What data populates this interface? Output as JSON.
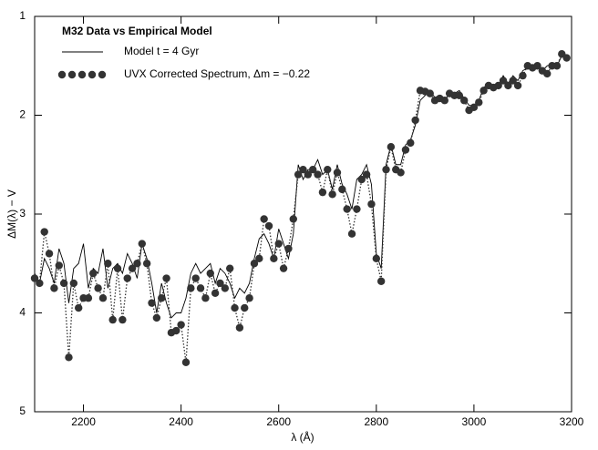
{
  "chart_data": {
    "type": "line",
    "title": "M32 Data vs Empirical Model",
    "x_label": "λ (Å)",
    "y_label": "ΔM(λ) − V",
    "xlim": [
      2100,
      3200
    ],
    "xticks": [
      2200,
      2400,
      2600,
      2800,
      3000,
      3200
    ],
    "ylim": [
      1,
      5
    ],
    "yticks": [
      1,
      2,
      3,
      4,
      5
    ],
    "y_inverted": true,
    "legend": "upper left",
    "x": [
      2100,
      2110,
      2120,
      2130,
      2140,
      2150,
      2160,
      2170,
      2180,
      2190,
      2200,
      2210,
      2220,
      2230,
      2240,
      2250,
      2260,
      2270,
      2280,
      2290,
      2300,
      2310,
      2320,
      2330,
      2340,
      2350,
      2360,
      2370,
      2380,
      2390,
      2400,
      2410,
      2420,
      2430,
      2440,
      2450,
      2460,
      2470,
      2480,
      2490,
      2500,
      2510,
      2520,
      2530,
      2540,
      2550,
      2560,
      2570,
      2580,
      2590,
      2600,
      2610,
      2620,
      2630,
      2640,
      2650,
      2660,
      2670,
      2680,
      2690,
      2700,
      2710,
      2720,
      2730,
      2740,
      2750,
      2760,
      2770,
      2780,
      2790,
      2800,
      2810,
      2820,
      2830,
      2840,
      2850,
      2860,
      2870,
      2880,
      2890,
      2900,
      2910,
      2920,
      2930,
      2940,
      2950,
      2960,
      2970,
      2980,
      2990,
      3000,
      3010,
      3020,
      3030,
      3040,
      3050,
      3060,
      3070,
      3080,
      3090,
      3100,
      3110,
      3120,
      3130,
      3140,
      3150,
      3160,
      3170,
      3180,
      3190
    ],
    "series": [
      {
        "name": "Model t = 4 Gyr",
        "color": "#000000",
        "style": "solid",
        "values": [
          3.6,
          3.7,
          3.45,
          3.55,
          3.7,
          3.35,
          3.5,
          3.9,
          3.55,
          3.5,
          3.3,
          3.75,
          3.55,
          3.6,
          3.35,
          3.75,
          3.55,
          3.5,
          3.6,
          3.4,
          3.5,
          3.65,
          3.3,
          3.45,
          3.7,
          4.0,
          3.7,
          3.9,
          4.05,
          4.0,
          4.0,
          3.85,
          3.6,
          3.5,
          3.6,
          3.55,
          3.5,
          3.7,
          3.55,
          3.6,
          3.7,
          3.85,
          3.75,
          3.8,
          3.7,
          3.45,
          3.25,
          3.2,
          3.3,
          3.45,
          3.15,
          3.3,
          3.45,
          3.2,
          2.5,
          2.65,
          2.55,
          2.55,
          2.45,
          2.6,
          2.55,
          2.75,
          2.5,
          2.7,
          2.8,
          2.95,
          2.65,
          2.6,
          2.5,
          2.7,
          3.4,
          3.55,
          2.5,
          2.3,
          2.5,
          2.5,
          2.3,
          2.25,
          2.1,
          1.85,
          1.8,
          1.75,
          1.82,
          1.8,
          1.83,
          1.8,
          1.78,
          1.75,
          1.83,
          1.9,
          1.9,
          1.85,
          1.72,
          1.68,
          1.7,
          1.7,
          1.6,
          1.68,
          1.6,
          1.65,
          1.55,
          1.52,
          1.5,
          1.5,
          1.55,
          1.5,
          1.48,
          1.5,
          1.4,
          1.4
        ]
      },
      {
        "name": "UVX Corrected Spectrum, Δm = −0.22",
        "color": "#333333",
        "style": "dotted-markers",
        "values": [
          3.65,
          3.7,
          3.18,
          3.4,
          3.75,
          3.52,
          3.7,
          4.45,
          3.7,
          3.95,
          3.85,
          3.85,
          3.6,
          3.75,
          3.85,
          3.5,
          4.07,
          3.55,
          4.07,
          3.65,
          3.55,
          3.5,
          3.3,
          3.5,
          3.9,
          4.05,
          3.85,
          3.65,
          4.2,
          4.18,
          4.12,
          4.5,
          3.75,
          3.65,
          3.75,
          3.85,
          3.6,
          3.8,
          3.7,
          3.75,
          3.55,
          3.95,
          4.15,
          3.95,
          3.85,
          3.5,
          3.45,
          3.05,
          3.12,
          3.45,
          3.3,
          3.55,
          3.35,
          3.05,
          2.6,
          2.55,
          2.6,
          2.55,
          2.6,
          2.78,
          2.55,
          2.8,
          2.58,
          2.75,
          2.95,
          3.2,
          2.95,
          2.65,
          2.6,
          2.9,
          3.45,
          3.68,
          2.55,
          2.32,
          2.55,
          2.58,
          2.35,
          2.28,
          2.05,
          1.75,
          1.76,
          1.78,
          1.85,
          1.83,
          1.85,
          1.78,
          1.8,
          1.8,
          1.85,
          1.95,
          1.92,
          1.87,
          1.75,
          1.7,
          1.72,
          1.7,
          1.65,
          1.7,
          1.65,
          1.7,
          1.6,
          1.5,
          1.52,
          1.5,
          1.55,
          1.58,
          1.5,
          1.5,
          1.38,
          1.42
        ]
      }
    ]
  }
}
